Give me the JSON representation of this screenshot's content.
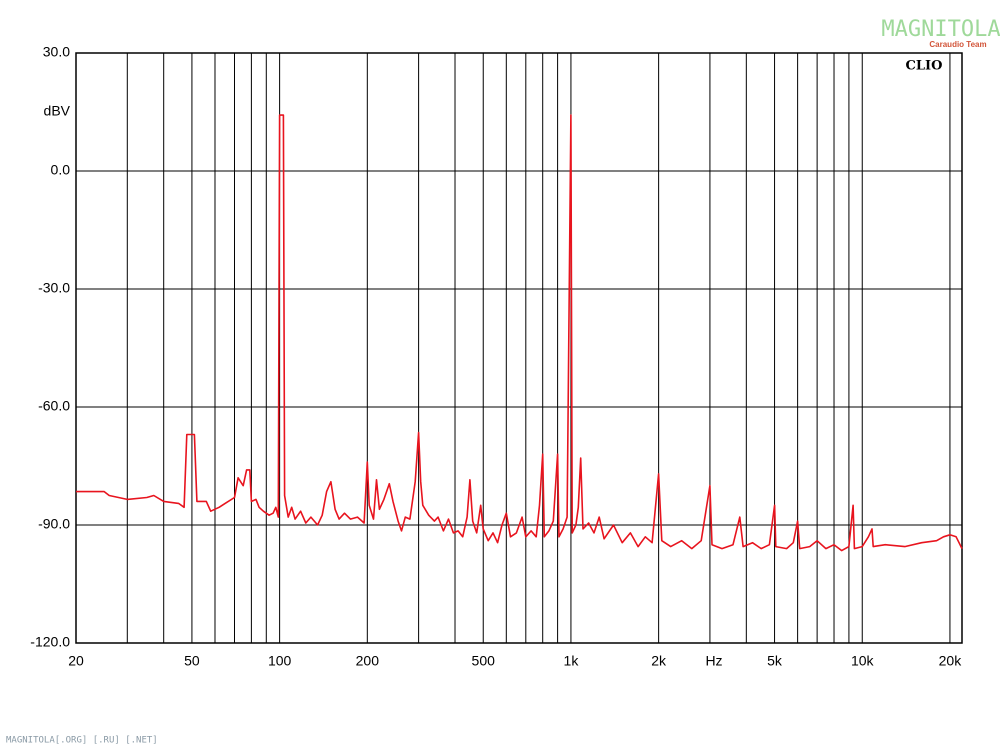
{
  "chart_data": {
    "type": "line",
    "x_label": "Hz",
    "y_label": "dBV",
    "brand": "CLIO",
    "xlim": [
      20,
      22000
    ],
    "ylim": [
      -120,
      30
    ],
    "xlog": true,
    "xticks": [
      20,
      50,
      100,
      200,
      500,
      {
        "value": 1000,
        "label": "1k"
      },
      {
        "value": 2000,
        "label": "2k"
      },
      {
        "value": 5000,
        "label": "5k"
      },
      {
        "value": 10000,
        "label": "10k"
      },
      {
        "value": 20000,
        "label": "20k"
      }
    ],
    "xgrid": [
      20,
      30,
      40,
      50,
      60,
      70,
      80,
      90,
      100,
      200,
      300,
      400,
      500,
      600,
      700,
      800,
      900,
      1000,
      2000,
      3000,
      4000,
      5000,
      6000,
      7000,
      8000,
      9000,
      10000,
      20000
    ],
    "yticks": [
      {
        "value": 30,
        "label": "30.0"
      },
      {
        "value": 0,
        "label": "0.0"
      },
      {
        "value": -30,
        "label": "-30.0"
      },
      {
        "value": -60,
        "label": "-60.0"
      },
      {
        "value": -90,
        "label": "-90.0"
      },
      {
        "value": -120,
        "label": "-120.0"
      }
    ],
    "grid": true,
    "x": [
      20,
      25,
      26,
      30,
      35,
      37,
      40,
      45,
      47,
      48,
      51,
      52,
      56,
      58,
      62,
      65,
      70,
      72,
      75,
      77,
      79,
      80,
      83,
      85,
      88,
      92,
      95,
      97,
      99,
      100,
      103,
      104,
      107,
      110,
      113,
      118,
      123,
      128,
      135,
      140,
      145,
      150,
      155,
      160,
      167,
      175,
      185,
      195,
      200,
      203,
      210,
      215,
      220,
      228,
      238,
      245,
      255,
      262,
      270,
      280,
      292,
      300,
      305,
      310,
      325,
      340,
      350,
      365,
      380,
      395,
      410,
      425,
      440,
      450,
      460,
      475,
      490,
      500,
      520,
      540,
      560,
      580,
      600,
      620,
      650,
      680,
      700,
      730,
      760,
      780,
      800,
      810,
      840,
      870,
      900,
      910,
      940,
      970,
      1000,
      1010,
      1040,
      1060,
      1080,
      1100,
      1150,
      1200,
      1250,
      1300,
      1400,
      1500,
      1600,
      1700,
      1800,
      1900,
      2000,
      2050,
      2200,
      2400,
      2600,
      2800,
      3000,
      3050,
      3300,
      3600,
      3800,
      3900,
      4200,
      4500,
      4800,
      5000,
      5050,
      5500,
      5800,
      6000,
      6100,
      6600,
      7000,
      7500,
      8000,
      8500,
      9000,
      9300,
      9400,
      10000,
      10500,
      10800,
      10900,
      12000,
      14000,
      16000,
      18000,
      19000,
      20000,
      21000,
      22000
    ],
    "series": [
      {
        "color": "#e8141e",
        "values": [
          -81.5,
          -81.5,
          -82.5,
          -83.5,
          -83,
          -82.5,
          -84,
          -84.5,
          -85.5,
          -67,
          -67,
          -84,
          -84,
          -86.5,
          -85.5,
          -84.5,
          -83,
          -78,
          -80,
          -76,
          -76,
          -84,
          -83.5,
          -85.5,
          -86.5,
          -87.5,
          -87,
          -85.5,
          -88,
          14.2,
          14.2,
          -82.5,
          -88,
          -85.5,
          -88.5,
          -86.5,
          -89.5,
          -88,
          -90,
          -87.5,
          -81.5,
          -79,
          -86,
          -88.5,
          -87,
          -88.5,
          -88,
          -89.5,
          -74,
          -85,
          -88.5,
          -78.5,
          -86,
          -83.5,
          -79.5,
          -84,
          -89,
          -91.5,
          -88,
          -88.5,
          -79,
          -66.5,
          -79,
          -85,
          -87.5,
          -89,
          -88,
          -91.5,
          -88.5,
          -92,
          -91.5,
          -93,
          -88,
          -78.5,
          -89,
          -92,
          -85,
          -91,
          -94,
          -92,
          -94.5,
          -90,
          -87,
          -93,
          -92,
          -88,
          -93,
          -91.5,
          -93,
          -85,
          -72,
          -93,
          -91.5,
          -89,
          -72,
          -93,
          -91,
          -88,
          14.2,
          -92,
          -90,
          -85.5,
          -73,
          -91,
          -89.5,
          -92,
          -88,
          -93.5,
          -90,
          -94.5,
          -92,
          -95.5,
          -93,
          -94.5,
          -77,
          -94,
          -95.5,
          -94,
          -96,
          -94,
          -80,
          -95,
          -96,
          -95,
          -88,
          -95.5,
          -94.5,
          -96,
          -95,
          -85,
          -95.5,
          -96,
          -94.5,
          -89,
          -96,
          -95.5,
          -94,
          -96,
          -95,
          -96.5,
          -95.5,
          -85,
          -96,
          -95.5,
          -93,
          -91,
          -95.5,
          -95,
          -95.5,
          -94.5,
          -94,
          -93,
          -92.5,
          -93,
          -96
        ]
      }
    ]
  },
  "watermark": {
    "title": "MAGNITOLA",
    "subtitle": "Caraudio Team"
  },
  "footer": "MAGNITOLA[.ORG] [.RU] [.NET]"
}
